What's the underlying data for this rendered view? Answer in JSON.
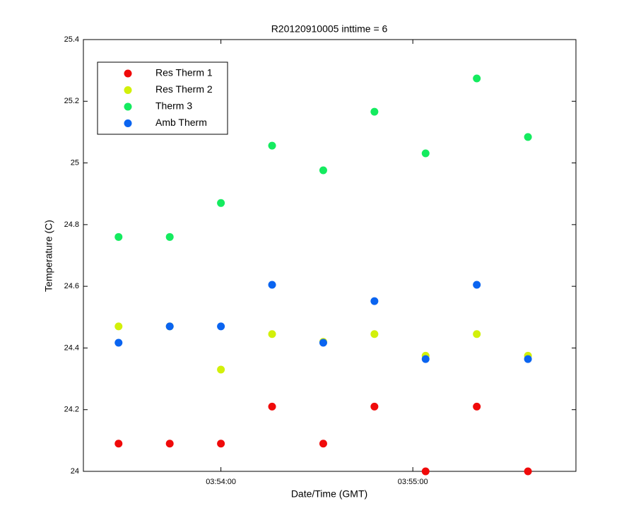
{
  "chart_data": {
    "type": "scatter",
    "title": "R20120910005 inttime = 6",
    "x_label": "Date/Time (GMT)",
    "y_label": "Temperature (C)",
    "x": [
      "03:53:28",
      "03:53:44",
      "03:54:00",
      "03:54:16",
      "03:54:32",
      "03:54:48",
      "03:55:04",
      "03:55:20",
      "03:55:36"
    ],
    "series": [
      {
        "name": "Res Therm 1",
        "color": "#f00a0a",
        "values": [
          24.09,
          24.09,
          24.09,
          24.21,
          24.09,
          24.21,
          24.0,
          24.21,
          24.0
        ]
      },
      {
        "name": "Res Therm 2",
        "color": "#d2f00a",
        "values": [
          24.47,
          24.47,
          24.33,
          24.445,
          24.42,
          24.445,
          24.375,
          24.445,
          24.375
        ]
      },
      {
        "name": "Therm 3",
        "color": "#14eb5f",
        "values": [
          24.76,
          24.76,
          24.87,
          25.056,
          24.976,
          25.166,
          25.031,
          25.274,
          25.084
        ]
      },
      {
        "name": "Amb Therm",
        "color": "#0a64f0",
        "values": [
          24.417,
          24.47,
          24.47,
          24.605,
          24.417,
          24.552,
          24.364,
          24.605,
          24.364
        ]
      }
    ],
    "xlim": [
      "03:53:17",
      "03:55:51"
    ],
    "xticks": [
      "03:54:00",
      "03:55:00"
    ],
    "ylim": [
      24,
      25.4
    ],
    "yticks": [
      24,
      24.2,
      24.4,
      24.6,
      24.8,
      25,
      25.2,
      25.4
    ],
    "grid": false,
    "legend": "upper-left"
  }
}
